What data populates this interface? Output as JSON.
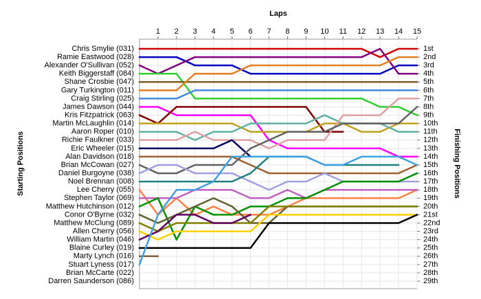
{
  "chart_data": {
    "type": "line",
    "title": "Laps",
    "y_label": "Starting Positions",
    "y2_label": "Finishing Positions",
    "x": [
      0,
      1,
      2,
      3,
      4,
      5,
      6,
      7,
      8,
      9,
      10,
      11,
      12,
      13,
      14,
      15
    ],
    "xlim": [
      0,
      15
    ],
    "xticks": [
      1,
      2,
      3,
      4,
      5,
      6,
      7,
      8,
      9,
      10,
      11,
      12,
      13,
      14,
      15
    ],
    "ylim": [
      29,
      1
    ],
    "y2lim": [
      29,
      1
    ],
    "y2ticks": [
      {
        "value": 1,
        "label": "1st"
      },
      {
        "value": 2,
        "label": "2nd"
      },
      {
        "value": 3,
        "label": "3rd"
      },
      {
        "value": 4,
        "label": "4th"
      },
      {
        "value": 5,
        "label": "5th"
      },
      {
        "value": 6,
        "label": "6th"
      },
      {
        "value": 7,
        "label": "7th"
      },
      {
        "value": 8,
        "label": "8th"
      },
      {
        "value": 9,
        "label": "9th"
      },
      {
        "value": 10,
        "label": "10th"
      },
      {
        "value": 11,
        "label": "11th"
      },
      {
        "value": 12,
        "label": "12th"
      },
      {
        "value": 13,
        "label": "13th"
      },
      {
        "value": 14,
        "label": "14th"
      },
      {
        "value": 15,
        "label": "15th"
      },
      {
        "value": 16,
        "label": "16th"
      },
      {
        "value": 17,
        "label": "17th"
      },
      {
        "value": 18,
        "label": "18th"
      },
      {
        "value": 19,
        "label": "19th"
      },
      {
        "value": 20,
        "label": "20th"
      },
      {
        "value": 21,
        "label": "21st"
      },
      {
        "value": 22,
        "label": "22nd"
      },
      {
        "value": 23,
        "label": "23rd"
      },
      {
        "value": 24,
        "label": "24th"
      },
      {
        "value": 25,
        "label": "25th"
      },
      {
        "value": 26,
        "label": "26th"
      },
      {
        "value": 27,
        "label": "27th"
      },
      {
        "value": 28,
        "label": "28th"
      },
      {
        "value": 29,
        "label": "29th"
      }
    ],
    "grid": true,
    "series": [
      {
        "name": "Chris Smylie (031)",
        "color": "#d00000",
        "values": [
          1,
          1,
          1,
          1,
          1,
          1,
          1,
          1,
          1,
          1,
          1,
          1,
          1,
          2,
          1,
          1
        ]
      },
      {
        "name": "Ramie Eastwood (028)",
        "color": "#0000c0",
        "values": [
          2,
          2,
          2,
          3,
          3,
          3,
          4,
          4,
          4,
          4,
          4,
          4,
          4,
          4,
          3,
          3
        ]
      },
      {
        "name": "Alexander O'Sullivan (052)",
        "color": "#800080",
        "values": [
          3,
          4,
          3,
          2,
          2,
          2,
          2,
          2,
          2,
          2,
          2,
          2,
          2,
          1,
          4,
          4
        ]
      },
      {
        "name": "Keith Biggerstaff (084)",
        "color": "#30d030",
        "values": [
          4,
          4,
          4,
          7,
          7,
          7,
          7,
          7,
          7,
          7,
          7,
          7,
          7,
          8,
          8,
          9
        ]
      },
      {
        "name": "Shane Crosbie (047)",
        "color": "#806020",
        "values": [
          5,
          5,
          5,
          5,
          5,
          5,
          5,
          5,
          5,
          5,
          5,
          5,
          5,
          5,
          5,
          5
        ]
      },
      {
        "name": "Gary Turkington (011)",
        "color": "#e08020",
        "values": [
          6,
          6,
          6,
          4,
          4,
          4,
          3,
          3,
          3,
          3,
          3,
          3,
          3,
          3,
          2,
          2
        ]
      },
      {
        "name": "Craig Stirling (025)",
        "color": "#4488e0",
        "values": [
          7,
          7,
          7,
          6,
          6,
          6,
          6,
          6,
          6,
          6,
          6,
          6,
          6,
          6,
          6,
          6
        ]
      },
      {
        "name": "James Dawson (044)",
        "color": "#ff00ff",
        "values": [
          8,
          8,
          9,
          9,
          9,
          9,
          9,
          12,
          13,
          13,
          13,
          13,
          13,
          13,
          14,
          14
        ]
      },
      {
        "name": "Kris Fitzpatrick (063)",
        "color": "#800000",
        "values": [
          9,
          10,
          8,
          8,
          8,
          8,
          8,
          8,
          8,
          8,
          11,
          11,
          null,
          null,
          null,
          null
        ]
      },
      {
        "name": "Martin McLaughlin (014)",
        "color": "#c0a020",
        "values": [
          10,
          10,
          10,
          10,
          10,
          10,
          11,
          11,
          11,
          11,
          10,
          10,
          11,
          11,
          10,
          10
        ]
      },
      {
        "name": "Aaron Roper (010)",
        "color": "#60b0a0",
        "values": [
          11,
          11,
          11,
          12,
          11,
          11,
          10,
          10,
          10,
          10,
          9,
          10,
          10,
          10,
          11,
          11
        ]
      },
      {
        "name": "Richie Faulkner (033)",
        "color": "#e0a0a0",
        "values": [
          12,
          12,
          12,
          11,
          12,
          12,
          12,
          13,
          12,
          12,
          12,
          9,
          9,
          9,
          7,
          7
        ]
      },
      {
        "name": "Eric Wheeler (015)",
        "color": "#000060",
        "values": [
          13,
          13,
          13,
          13,
          13,
          12,
          14,
          null,
          null,
          null,
          null,
          null,
          null,
          null,
          null,
          null
        ]
      },
      {
        "name": "Alan Davidson (018)",
        "color": "#a06030",
        "values": [
          14,
          14,
          14,
          14,
          14,
          14,
          15,
          16,
          16,
          16,
          16,
          16,
          16,
          16,
          16,
          15
        ]
      },
      {
        "name": "Brian McCowan (027)",
        "color": "#606060",
        "values": [
          15,
          16,
          16,
          15,
          15,
          15,
          13,
          12,
          11,
          11,
          11,
          10,
          10,
          10,
          10,
          8
        ]
      },
      {
        "name": "Daniel Burgoyne (038)",
        "color": "#a0a0e0",
        "values": [
          16,
          15,
          15,
          16,
          16,
          16,
          17,
          18,
          17,
          17,
          16,
          17,
          17,
          17,
          17,
          17
        ]
      },
      {
        "name": "Noel Brennan (008)",
        "color": "#208080",
        "values": [
          17,
          17,
          17,
          17,
          17,
          17,
          16,
          14,
          14,
          14,
          15,
          15,
          15,
          15,
          15,
          null
        ]
      },
      {
        "name": "Lee Cherry (055)",
        "color": "#ff8040",
        "values": [
          18,
          21,
          19,
          21,
          20,
          21,
          21,
          21,
          20,
          19,
          19,
          19,
          19,
          19,
          19,
          18
        ]
      },
      {
        "name": "Stephen Taylor (069)",
        "color": "#c060c0",
        "values": [
          19,
          19,
          19,
          18,
          18,
          18,
          19,
          19,
          18,
          19,
          18,
          18,
          18,
          18,
          18,
          18
        ]
      },
      {
        "name": "Matthew Hutchinson (012)",
        "color": "#009000",
        "values": [
          20,
          19,
          24,
          20,
          21,
          21,
          20,
          20,
          19,
          19,
          18,
          17,
          17,
          17,
          17,
          16
        ]
      },
      {
        "name": "Conor O'Byrne (032)",
        "color": "#606030",
        "values": [
          21,
          22,
          21,
          20,
          19,
          20,
          22,
          22,
          20,
          20,
          20,
          20,
          20,
          20,
          20,
          20
        ]
      },
      {
        "name": "Matthew McClung (089)",
        "color": "#808000",
        "values": [
          22,
          23,
          22,
          22,
          22,
          22,
          22,
          20,
          20,
          20,
          20,
          20,
          20,
          20,
          20,
          20
        ]
      },
      {
        "name": "Allen Cherry (056)",
        "color": "#ffd000",
        "values": [
          23,
          24,
          23,
          23,
          23,
          23,
          23,
          21,
          21,
          21,
          21,
          21,
          21,
          21,
          21,
          21
        ]
      },
      {
        "name": "William Martin (046)",
        "color": "#600060",
        "values": [
          24,
          23,
          21,
          21,
          22,
          22,
          21,
          null,
          null,
          null,
          null,
          null,
          null,
          null,
          null,
          null
        ]
      },
      {
        "name": "Blaine Curley (019)",
        "color": "#000000",
        "values": [
          25,
          25,
          25,
          25,
          25,
          25,
          25,
          22,
          22,
          22,
          22,
          22,
          22,
          22,
          22,
          21
        ]
      },
      {
        "name": "Marty Lynch (016)",
        "color": "#806040",
        "values": [
          26,
          26,
          null,
          null,
          null,
          null,
          null,
          null,
          null,
          null,
          null,
          null,
          null,
          null,
          null,
          null
        ]
      },
      {
        "name": "Stuart Lyness (017)",
        "color": "#40a0e0",
        "values": [
          27,
          21,
          18,
          18,
          17,
          14,
          14,
          14,
          14,
          14,
          15,
          15,
          14,
          14,
          14,
          15
        ]
      },
      {
        "name": "Brian McCarte (022)",
        "color": "#909090",
        "values": [
          28,
          null,
          null,
          null,
          null,
          null,
          null,
          null,
          null,
          null,
          null,
          null,
          null,
          null,
          null,
          null
        ]
      },
      {
        "name": "Darren Saunderson (086)",
        "color": "#909090",
        "values": [
          29,
          null,
          null,
          null,
          null,
          null,
          null,
          null,
          null,
          null,
          null,
          null,
          null,
          null,
          null,
          null
        ]
      }
    ]
  }
}
